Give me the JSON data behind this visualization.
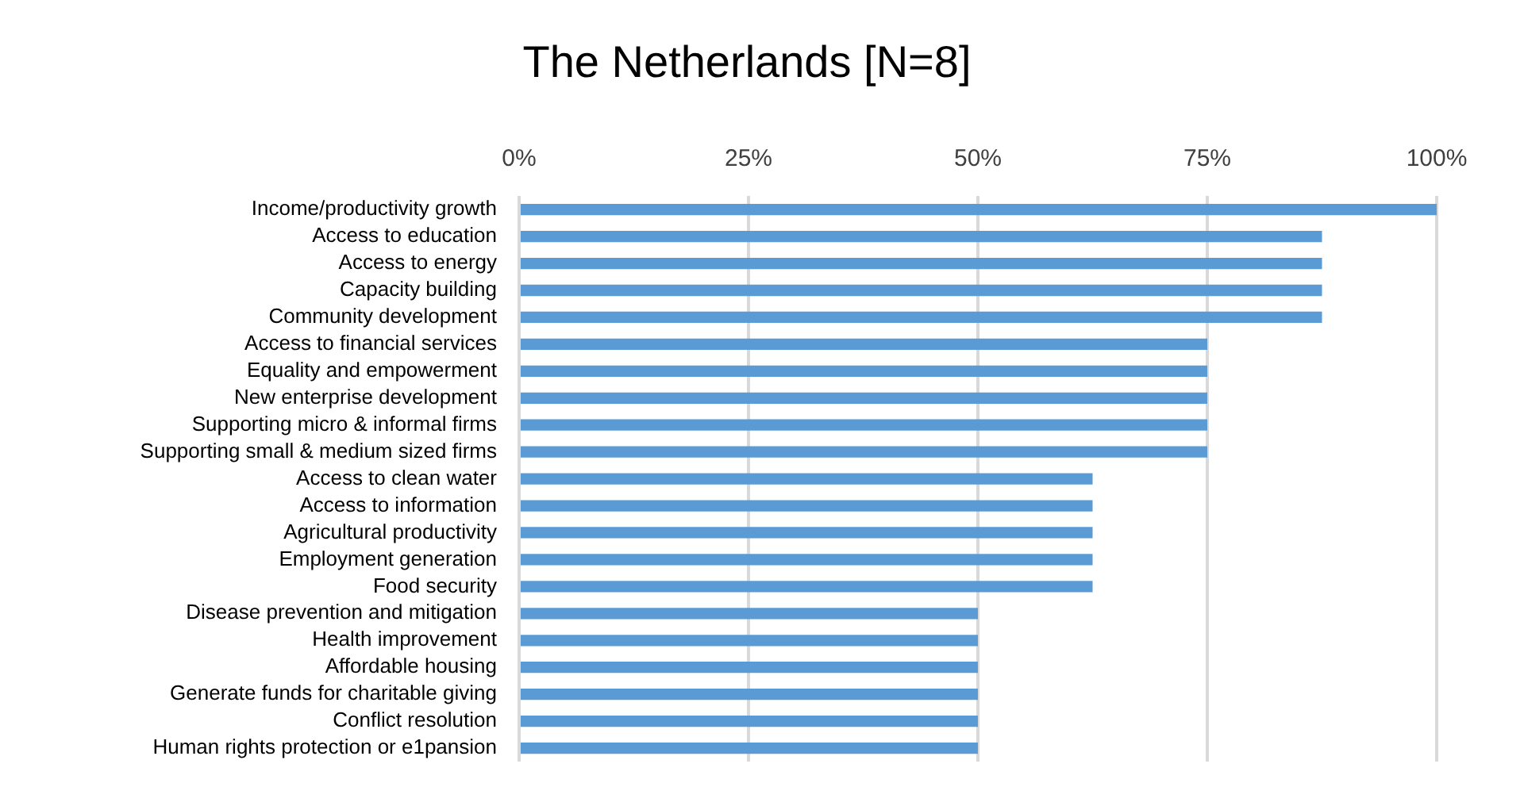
{
  "chart_data": {
    "type": "bar",
    "orientation": "horizontal",
    "title": "The Netherlands [N=8]",
    "categories": [
      "Income/productivity growth",
      "Access to education",
      "Access to energy",
      "Capacity building",
      "Community development",
      "Access to financial services",
      "Equality and empowerment",
      "New enterprise development",
      "Supporting micro & informal firms",
      "Supporting small & medium sized firms",
      "Access to clean water",
      "Access to information",
      "Agricultural productivity",
      "Employment generation",
      "Food security",
      "Disease prevention and mitigation",
      "Health improvement",
      "Affordable housing",
      "Generate funds for charitable giving",
      "Conflict resolution",
      "Human rights protection or e1pansion"
    ],
    "values": [
      100,
      87.5,
      87.5,
      87.5,
      87.5,
      75,
      75,
      75,
      75,
      75,
      62.5,
      62.5,
      62.5,
      62.5,
      62.5,
      50,
      50,
      50,
      50,
      50,
      50
    ],
    "color": "#5b9bd5",
    "xlim": [
      0,
      100
    ],
    "xticks": [
      {
        "value": 0,
        "label": "0%"
      },
      {
        "value": 25,
        "label": "25%"
      },
      {
        "value": 50,
        "label": "50%"
      },
      {
        "value": 75,
        "label": "75%"
      },
      {
        "value": 100,
        "label": "100%"
      }
    ],
    "grid": "x"
  }
}
